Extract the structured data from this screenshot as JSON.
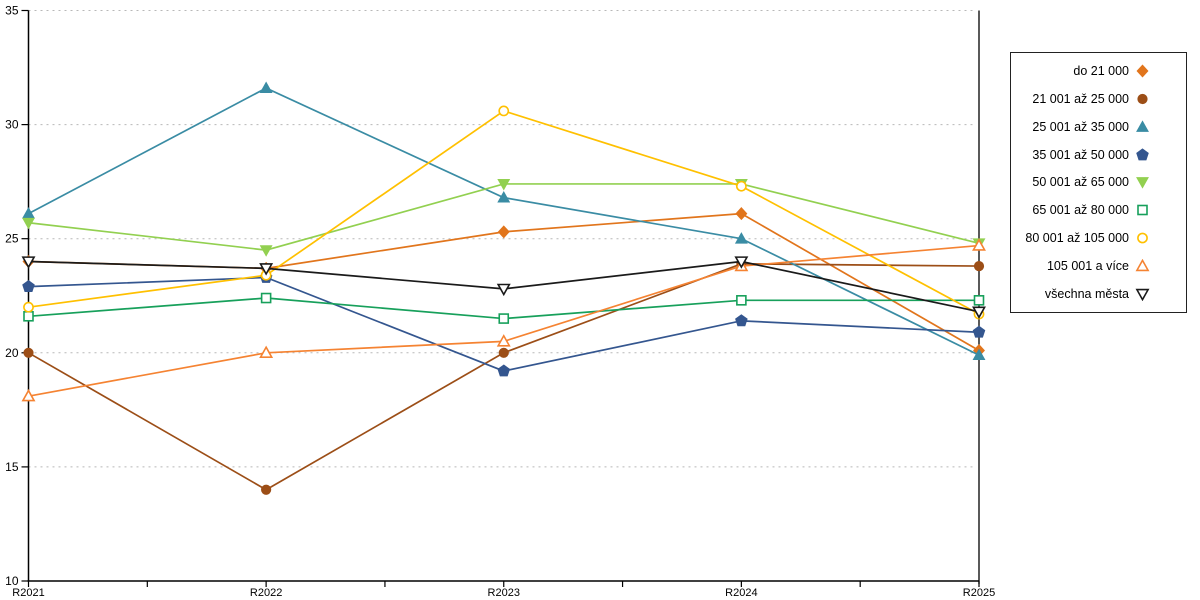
{
  "chart_data": {
    "type": "line",
    "title": "",
    "xlabel": "",
    "ylabel": "",
    "categories": [
      "R2021",
      "R2022",
      "R2023",
      "R2024",
      "R2025"
    ],
    "y_ticks": [
      10,
      15,
      20,
      25,
      30,
      35
    ],
    "ylim": [
      10,
      35
    ],
    "grid": "horizontal-dotted",
    "legend_position": "right",
    "axis_color": "#000000",
    "grid_color": "#b8b8b8",
    "series": [
      {
        "name": "do 21 000",
        "color": "#E1751C",
        "marker": "diamond",
        "filled": true,
        "values": [
          24.0,
          23.7,
          25.3,
          26.1,
          20.1
        ]
      },
      {
        "name": "21 001 až 25 000",
        "color": "#9C4E17",
        "marker": "circle",
        "filled": true,
        "values": [
          20.0,
          14.0,
          20.0,
          23.9,
          23.8
        ]
      },
      {
        "name": "25 001 až 35 000",
        "color": "#3A8CA4",
        "marker": "triangle-up",
        "filled": true,
        "values": [
          26.1,
          31.6,
          26.8,
          25.0,
          19.9
        ]
      },
      {
        "name": "35 001 až 50 000",
        "color": "#34568F",
        "marker": "pentagon",
        "filled": true,
        "values": [
          22.9,
          23.3,
          19.2,
          21.4,
          20.9
        ]
      },
      {
        "name": "50 001 až 65 000",
        "color": "#92D050",
        "marker": "triangle-down",
        "filled": true,
        "values": [
          25.7,
          24.5,
          27.4,
          27.4,
          24.8
        ]
      },
      {
        "name": "65 001 až 80 000",
        "color": "#17A05B",
        "marker": "square",
        "filled": false,
        "values": [
          21.6,
          22.4,
          21.5,
          22.3,
          22.3
        ]
      },
      {
        "name": "80 001 až 105 000",
        "color": "#FFC000",
        "marker": "circle",
        "filled": false,
        "values": [
          22.0,
          23.4,
          30.6,
          27.3,
          21.7
        ]
      },
      {
        "name": "105 001 a více",
        "color": "#F58332",
        "marker": "triangle-up",
        "filled": false,
        "values": [
          18.1,
          20.0,
          20.5,
          23.8,
          24.7
        ]
      },
      {
        "name": "všechna města",
        "color": "#1A1A1A",
        "marker": "triangle-down",
        "filled": false,
        "values": [
          24.0,
          23.7,
          22.8,
          24.0,
          21.8
        ]
      }
    ]
  }
}
